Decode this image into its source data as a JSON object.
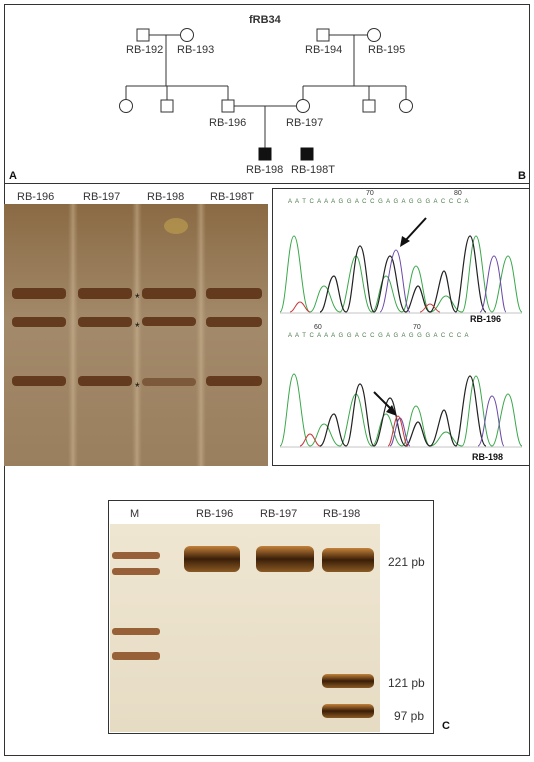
{
  "figure": {
    "panel_a_letter": "A",
    "panel_b_letter": "B",
    "panel_c_letter": "C"
  },
  "pedigree": {
    "family_id": "fRB34",
    "individuals": {
      "rb192": "RB-192",
      "rb193": "RB-193",
      "rb194": "RB-194",
      "rb195": "RB-195",
      "rb196": "RB-196",
      "rb197": "RB-197",
      "rb198": "RB-198",
      "rb198t": "RB-198T"
    }
  },
  "sscp_gel": {
    "lanes": [
      "RB-196",
      "RB-197",
      "RB-198",
      "RB-198T"
    ],
    "band_markers": [
      "*",
      "*",
      "*"
    ]
  },
  "sequencing": {
    "top_label": "RB-196",
    "bottom_label": "RB-198",
    "top_ruler": [
      "70",
      "80"
    ],
    "bottom_ruler": [
      "60",
      "70"
    ],
    "top_sequence": "A A T C A A A G G A C C G A G A G G G A C C C A",
    "bottom_sequence": "A A T C A A A G G A C C G A G A G G G A C C C A"
  },
  "restriction_gel": {
    "lanes": [
      "M",
      "RB-196",
      "RB-197",
      "RB-198"
    ],
    "size_labels": [
      "221 pb",
      "121 pb",
      "97 pb"
    ]
  }
}
